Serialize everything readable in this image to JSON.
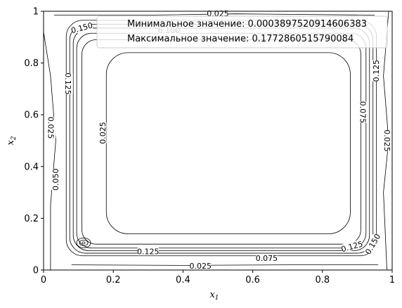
{
  "chart_data": {
    "type": "contour",
    "xlabel": "x",
    "xlabel_sub": "1",
    "ylabel": "x",
    "ylabel_sub": "2",
    "xlim": [
      0,
      1
    ],
    "ylim": [
      0,
      1
    ],
    "x_ticks": [
      "0",
      "0.2",
      "0.4",
      "0.6",
      "0.8",
      "1"
    ],
    "y_ticks": [
      "0",
      "0.2",
      "0.4",
      "0.6",
      "0.8",
      "1"
    ],
    "grid": false,
    "legend_position": "top-right",
    "legend": [
      "Минимальное значение: 0.0003897520914606383",
      "Максимальное значение: 0.1772860515790084"
    ],
    "contour_levels": [
      0.025,
      0.05,
      0.075,
      0.1,
      0.125,
      0.15,
      0.175
    ],
    "contour_rects": [
      {
        "level": 0.025,
        "x0": 0.18,
        "x1": 0.88,
        "y0": 0.14,
        "y1": 0.84
      },
      {
        "level": 0.05,
        "x0": 0.11,
        "x1": 0.91,
        "y0": 0.1,
        "y1": 0.89
      },
      {
        "level": 0.075,
        "x0": 0.095,
        "x1": 0.925,
        "y0": 0.085,
        "y1": 0.915
      },
      {
        "level": 0.1,
        "x0": 0.085,
        "x1": 0.935,
        "y0": 0.075,
        "y1": 0.935
      },
      {
        "level": 0.125,
        "x0": 0.075,
        "x1": 0.945,
        "y0": 0.065,
        "y1": 0.95
      },
      {
        "level": 0.15,
        "x0": 0.065,
        "x1": 0.955,
        "y0": 0.055,
        "y1": 0.965
      }
    ],
    "contour_labels": [
      {
        "text": "0.025",
        "x": 0.5,
        "y": 0.99,
        "rot": 0
      },
      {
        "text": "0.150",
        "x": 0.11,
        "y": 0.935,
        "rot": -15
      },
      {
        "text": "0.100",
        "x": 0.36,
        "y": 0.925,
        "rot": 0
      },
      {
        "text": "0.125",
        "x": 0.07,
        "y": 0.72,
        "rot": 90
      },
      {
        "text": "0.025",
        "x": 0.02,
        "y": 0.55,
        "rot": 90
      },
      {
        "text": "0.025",
        "x": 0.17,
        "y": 0.53,
        "rot": -90
      },
      {
        "text": "0.050",
        "x": 0.035,
        "y": 0.35,
        "rot": -90
      },
      {
        "text": "0.125",
        "x": 0.3,
        "y": 0.07,
        "rot": 0
      },
      {
        "text": "0.025",
        "x": 0.45,
        "y": 0.015,
        "rot": 0
      },
      {
        "text": "0.075",
        "x": 0.64,
        "y": 0.045,
        "rot": 0
      },
      {
        "text": "0.125",
        "x": 0.885,
        "y": 0.09,
        "rot": -15
      },
      {
        "text": "0.150",
        "x": 0.945,
        "y": 0.1,
        "rot": -60
      },
      {
        "text": "0.125",
        "x": 0.955,
        "y": 0.77,
        "rot": -90
      },
      {
        "text": "0.075",
        "x": 0.915,
        "y": 0.61,
        "rot": 90
      },
      {
        "text": "0.025",
        "x": 0.985,
        "y": 0.5,
        "rot": 90
      }
    ]
  }
}
